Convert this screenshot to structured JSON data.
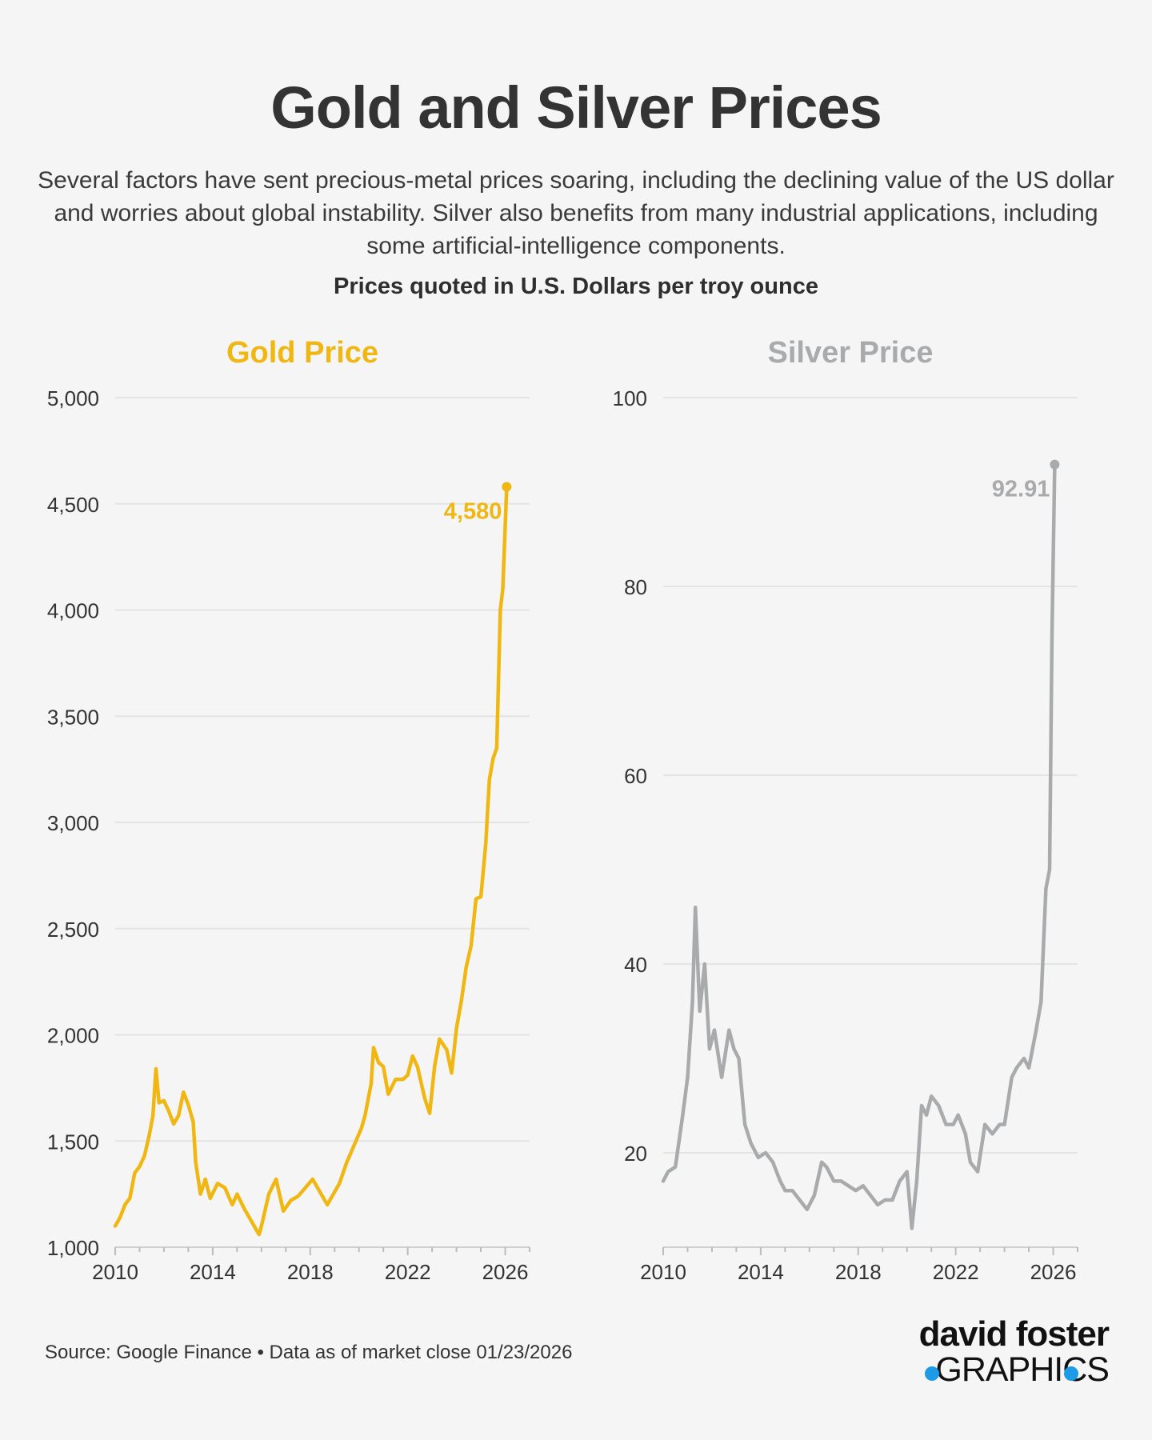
{
  "header": {
    "title": "Gold and Silver Prices",
    "subtitle": "Several factors have sent precious-metal prices soaring, including the declining value of the US dollar and worries about global instability. Silver also benefits from many industrial applications, including some artificial-intelligence components.",
    "units": "Prices quoted in U.S. Dollars per troy ounce"
  },
  "footer": {
    "source": "Source: Google Finance • Data as of market close 01/23/2026",
    "logo_line1": "david foster",
    "logo_line2": "GRAPHICS",
    "logo_accent_color": "#1e9be6"
  },
  "chart_data": [
    {
      "type": "line",
      "title": "Gold Price",
      "color": "#f0b713",
      "ylim": [
        1000,
        5000
      ],
      "yticks": [
        1000,
        1500,
        2000,
        2500,
        3000,
        3500,
        4000,
        4500,
        5000
      ],
      "ytick_labels": [
        "1,000",
        "1,500",
        "2,000",
        "2,500",
        "3,000",
        "3,500",
        "4,000",
        "4,500",
        "5,000"
      ],
      "xlim": [
        2010,
        2027
      ],
      "xticks": [
        2010,
        2014,
        2018,
        2022,
        2026
      ],
      "xtick_labels": [
        "2010",
        "2014",
        "2018",
        "2022",
        "2026"
      ],
      "grid": true,
      "end_label": "4,580",
      "series": [
        {
          "x": [
            2010.0,
            2010.2,
            2010.4,
            2010.6,
            2010.8,
            2011.0,
            2011.2,
            2011.4,
            2011.55,
            2011.67,
            2011.8,
            2012.0,
            2012.2,
            2012.4,
            2012.6,
            2012.8,
            2013.0,
            2013.2,
            2013.3,
            2013.5,
            2013.7,
            2013.9,
            2014.2,
            2014.5,
            2014.8,
            2015.0,
            2015.3,
            2015.6,
            2015.9,
            2016.0,
            2016.3,
            2016.6,
            2016.9,
            2017.2,
            2017.5,
            2017.8,
            2018.1,
            2018.4,
            2018.7,
            2018.9,
            2019.2,
            2019.5,
            2019.8,
            2020.1,
            2020.25,
            2020.5,
            2020.6,
            2020.8,
            2021.0,
            2021.2,
            2021.5,
            2021.8,
            2022.0,
            2022.2,
            2022.4,
            2022.7,
            2022.9,
            2023.1,
            2023.3,
            2023.6,
            2023.8,
            2024.0,
            2024.2,
            2024.4,
            2024.6,
            2024.8,
            2025.0,
            2025.2,
            2025.35,
            2025.5,
            2025.65,
            2025.8,
            2025.9,
            2026.06
          ],
          "y": [
            1100,
            1140,
            1200,
            1230,
            1350,
            1380,
            1430,
            1530,
            1620,
            1840,
            1680,
            1690,
            1640,
            1580,
            1620,
            1730,
            1670,
            1590,
            1400,
            1250,
            1320,
            1230,
            1300,
            1280,
            1200,
            1250,
            1180,
            1120,
            1060,
            1100,
            1250,
            1320,
            1170,
            1220,
            1240,
            1280,
            1320,
            1260,
            1200,
            1240,
            1300,
            1400,
            1480,
            1560,
            1620,
            1770,
            1940,
            1870,
            1850,
            1720,
            1790,
            1790,
            1810,
            1900,
            1850,
            1700,
            1630,
            1850,
            1980,
            1930,
            1820,
            2030,
            2160,
            2320,
            2420,
            2640,
            2650,
            2900,
            3200,
            3300,
            3350,
            4000,
            4100,
            4580
          ]
        }
      ]
    },
    {
      "type": "line",
      "title": "Silver Price",
      "color": "#a8aaac",
      "ylim": [
        10,
        100
      ],
      "yticks": [
        20,
        40,
        60,
        80,
        100
      ],
      "ytick_labels": [
        "20",
        "40",
        "60",
        "80",
        "100"
      ],
      "xlim": [
        2010,
        2027
      ],
      "xticks": [
        2010,
        2014,
        2018,
        2022,
        2026
      ],
      "xtick_labels": [
        "2010",
        "2014",
        "2018",
        "2022",
        "2026"
      ],
      "grid": true,
      "end_label": "92.91",
      "series": [
        {
          "x": [
            2010.0,
            2010.2,
            2010.5,
            2010.8,
            2011.0,
            2011.2,
            2011.32,
            2011.5,
            2011.7,
            2011.9,
            2012.1,
            2012.4,
            2012.7,
            2012.9,
            2013.1,
            2013.35,
            2013.6,
            2013.9,
            2014.2,
            2014.5,
            2014.8,
            2015.0,
            2015.3,
            2015.6,
            2015.9,
            2016.2,
            2016.5,
            2016.7,
            2017.0,
            2017.3,
            2017.6,
            2017.9,
            2018.2,
            2018.5,
            2018.8,
            2019.1,
            2019.4,
            2019.7,
            2020.0,
            2020.2,
            2020.4,
            2020.6,
            2020.8,
            2021.0,
            2021.3,
            2021.6,
            2021.9,
            2022.1,
            2022.4,
            2022.6,
            2022.9,
            2023.2,
            2023.5,
            2023.8,
            2024.0,
            2024.3,
            2024.5,
            2024.8,
            2025.0,
            2025.3,
            2025.5,
            2025.7,
            2025.85,
            2025.95,
            2026.06
          ],
          "y": [
            17,
            18,
            18.5,
            24,
            28,
            36,
            46,
            35,
            40,
            31,
            33,
            28,
            33,
            31,
            30,
            23,
            21,
            19.5,
            20,
            19,
            17,
            16,
            16,
            15,
            14,
            15.5,
            19,
            18.5,
            17,
            17,
            16.5,
            16,
            16.5,
            15.5,
            14.5,
            15,
            15,
            17,
            18,
            12,
            17,
            25,
            24,
            26,
            25,
            23,
            23,
            24,
            22,
            19,
            18,
            23,
            22,
            23,
            23,
            28,
            29,
            30,
            29,
            33,
            36,
            48,
            50,
            75,
            92.91
          ]
        }
      ]
    }
  ]
}
